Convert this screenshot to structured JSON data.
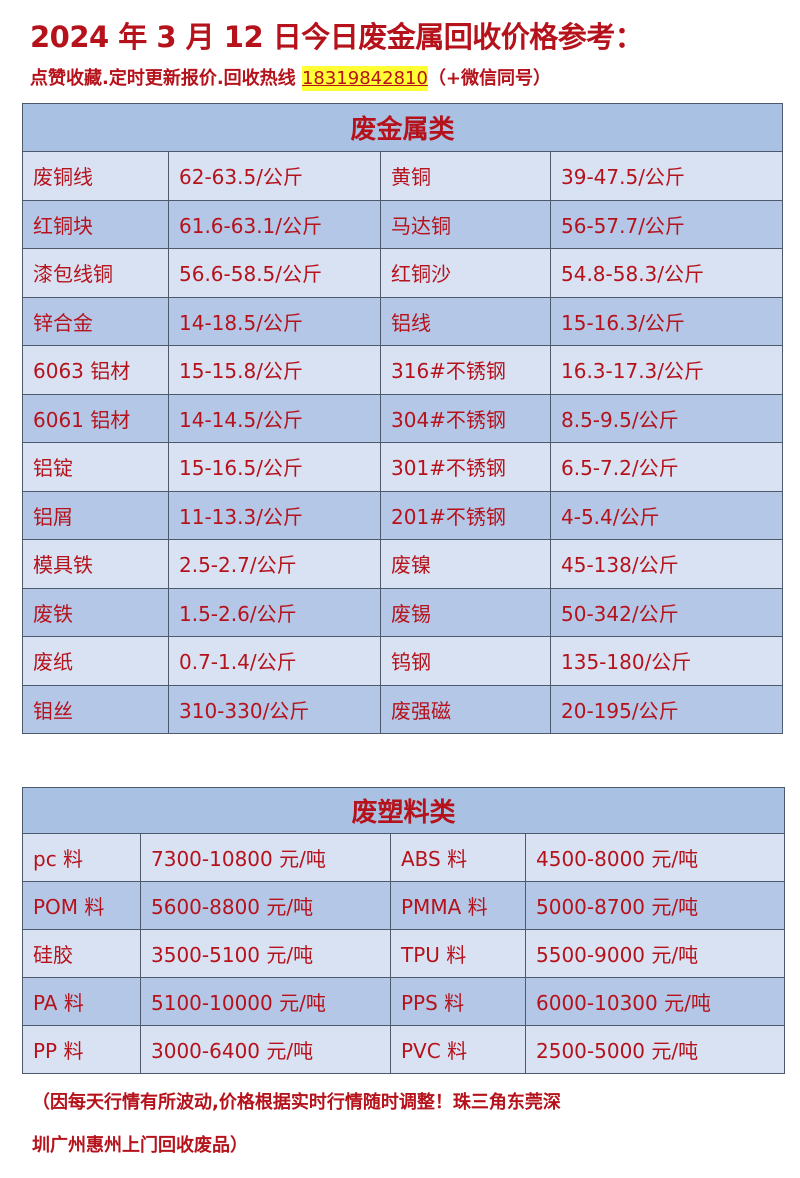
{
  "header": {
    "title": "2024 年 3 月 12 日今日废金属回收价格参考：",
    "subtitle_prefix": "点赞收藏.定时更新报价.回收热线 ",
    "phone": "18319842810",
    "subtitle_suffix": "（+微信同号）"
  },
  "metal": {
    "title": "废金属类",
    "rows": [
      [
        "废铜线",
        "62-63.5/公斤",
        "黄铜",
        "39-47.5/公斤"
      ],
      [
        "红铜块",
        "61.6-63.1/公斤",
        "马达铜",
        "56-57.7/公斤"
      ],
      [
        "漆包线铜",
        "56.6-58.5/公斤",
        "红铜沙",
        "54.8-58.3/公斤"
      ],
      [
        "锌合金",
        "14-18.5/公斤",
        "铝线",
        "15-16.3/公斤"
      ],
      [
        "6063 铝材",
        "15-15.8/公斤",
        "316#不锈钢",
        "16.3-17.3/公斤"
      ],
      [
        "6061 铝材",
        "14-14.5/公斤",
        "304#不锈钢",
        "8.5-9.5/公斤"
      ],
      [
        "铝锭",
        "15-16.5/公斤",
        "301#不锈钢",
        "6.5-7.2/公斤"
      ],
      [
        "铝屑",
        "11-13.3/公斤",
        "201#不锈钢",
        "4-5.4/公斤"
      ],
      [
        "模具铁",
        "2.5-2.7/公斤",
        "废镍",
        "45-138/公斤"
      ],
      [
        "废铁",
        "1.5-2.6/公斤",
        "废锡",
        "50-342/公斤"
      ],
      [
        "废纸",
        "0.7-1.4/公斤",
        "钨钢",
        "135-180/公斤"
      ],
      [
        "钼丝",
        "310-330/公斤",
        "废强磁",
        "20-195/公斤"
      ]
    ]
  },
  "plastic": {
    "title": "废塑料类",
    "rows": [
      [
        "pc 料",
        "7300-10800 元/吨",
        "ABS 料",
        "4500-8000 元/吨"
      ],
      [
        "POM 料",
        "5600-8800 元/吨",
        "PMMA 料",
        "5000-8700 元/吨"
      ],
      [
        "硅胶",
        "3500-5100 元/吨",
        "TPU 料",
        "5500-9000 元/吨"
      ],
      [
        "PA 料",
        "5100-10000 元/吨",
        "PPS 料",
        "6000-10300 元/吨"
      ],
      [
        "PP 料",
        "3000-6400 元/吨",
        "PVC 料",
        "2500-5000 元/吨"
      ]
    ]
  },
  "footer": {
    "line1": "（因每天行情有所波动,价格根据实时行情随时调整！珠三角东莞深",
    "line2": "圳广州惠州上门回收废品）"
  },
  "colors": {
    "text": "#b5121b",
    "header_bg": "#a9c1e2",
    "row_light": "#d9e2f3",
    "row_dark": "#b4c7e7",
    "highlight": "#ffff33"
  }
}
